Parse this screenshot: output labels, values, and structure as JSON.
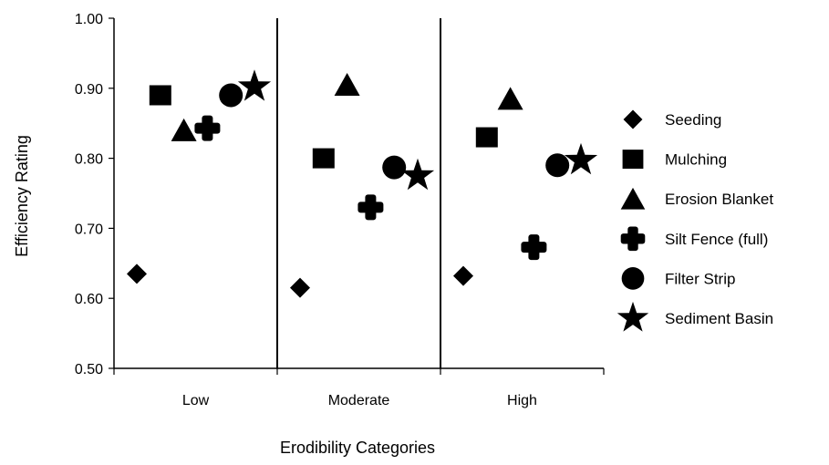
{
  "chart_data": {
    "type": "scatter",
    "xlabel": "Erodibility Categories",
    "ylabel": "Efficiency Rating",
    "categories": [
      "Low",
      "Moderate",
      "High"
    ],
    "ylim": [
      0.5,
      1.0
    ],
    "yticks": [
      "0.50",
      "0.60",
      "0.70",
      "0.80",
      "0.90",
      "1.00"
    ],
    "grid": false,
    "legend_position": "right",
    "series": [
      {
        "name": "Seeding",
        "marker": "diamond",
        "values": [
          0.635,
          0.615,
          0.632
        ]
      },
      {
        "name": "Mulching",
        "marker": "square",
        "values": [
          0.89,
          0.8,
          0.83
        ]
      },
      {
        "name": "Erosion Blanket",
        "marker": "triangle",
        "values": [
          0.84,
          0.905,
          0.885
        ]
      },
      {
        "name": "Silt Fence (full)",
        "marker": "cross",
        "values": [
          0.843,
          0.73,
          0.673
        ]
      },
      {
        "name": "Filter Strip",
        "marker": "circle",
        "values": [
          0.89,
          0.787,
          0.79
        ]
      },
      {
        "name": "Sediment Basin",
        "marker": "star",
        "values": [
          0.902,
          0.775,
          0.797
        ]
      }
    ],
    "marker_color": "#000000"
  }
}
